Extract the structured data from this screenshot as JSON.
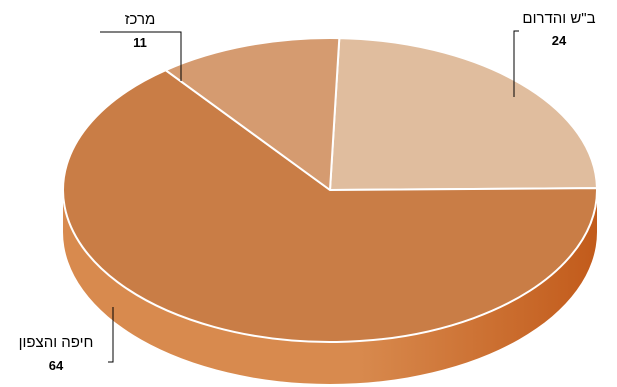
{
  "chart_data": {
    "type": "pie",
    "style": "3d",
    "title": "",
    "slices": [
      {
        "label": "ב\"ש והדרום",
        "value": 24,
        "color": "#E0BD9E"
      },
      {
        "label": "חיפה והצפון",
        "value": 64,
        "color": "#C97D46"
      },
      {
        "label": "מרכז",
        "value": 11,
        "color": "#D59B70"
      }
    ],
    "side_colors": {
      "light": "#D88A4E",
      "dark": "#C25B1B"
    }
  }
}
